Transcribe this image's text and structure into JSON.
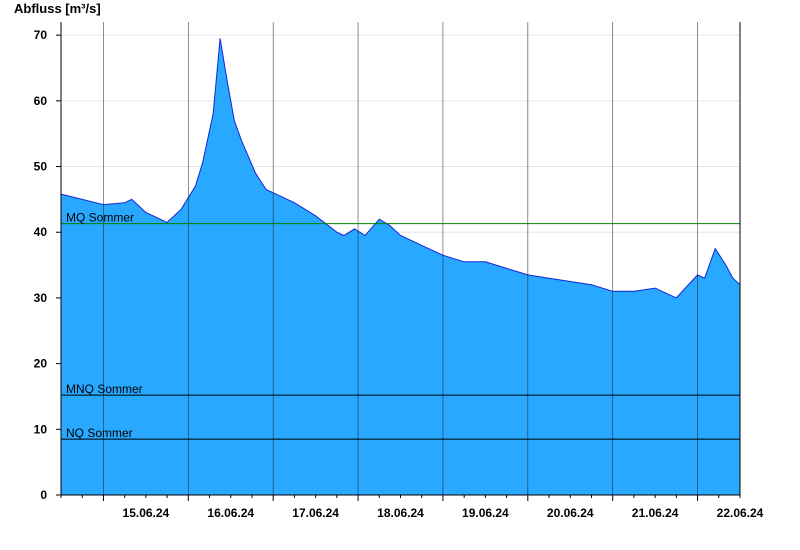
{
  "chart_data": {
    "type": "area",
    "ylabel": "Abfluss [m³/s]",
    "ylim": [
      0,
      72
    ],
    "y_ticks": [
      0,
      10,
      20,
      30,
      40,
      50,
      60,
      70
    ],
    "x_range": [
      "14.06.24 12:00",
      "22.06.24 12:00"
    ],
    "x_ticks": [
      "15.06.24",
      "16.06.24",
      "17.06.24",
      "18.06.24",
      "19.06.24",
      "20.06.24",
      "21.06.24",
      "22.06.24"
    ],
    "grid": true,
    "fill_color": "#29a8ff",
    "line_color": "#1428d2",
    "series": [
      {
        "x": [
          "14.06.24 12:00",
          "14.06.24 18:00",
          "15.06.24 00:00",
          "15.06.24 06:00",
          "15.06.24 08:00",
          "15.06.24 12:00",
          "15.06.24 18:00",
          "15.06.24 22:00",
          "16.06.24 02:00",
          "16.06.24 04:00",
          "16.06.24 07:00",
          "16.06.24 09:00",
          "16.06.24 11:00",
          "16.06.24 13:00",
          "16.06.24 15:00",
          "16.06.24 19:00",
          "16.06.24 22:00",
          "17.06.24 00:00",
          "17.06.24 06:00",
          "17.06.24 12:00",
          "17.06.24 18:00",
          "17.06.24 20:00",
          "17.06.24 23:00",
          "18.06.24 02:00",
          "18.06.24 06:00",
          "18.06.24 09:00",
          "18.06.24 12:00",
          "18.06.24 18:00",
          "19.06.24 00:00",
          "19.06.24 06:00",
          "19.06.24 12:00",
          "19.06.24 18:00",
          "20.06.24 00:00",
          "20.06.24 06:00",
          "20.06.24 12:00",
          "20.06.24 18:00",
          "21.06.24 00:00",
          "21.06.24 06:00",
          "21.06.24 12:00",
          "21.06.24 18:00",
          "22.06.24 00:00",
          "22.06.24 02:00",
          "22.06.24 05:00",
          "22.06.24 08:00",
          "22.06.24 10:00",
          "22.06.24 12:00"
        ],
        "y": [
          45.8,
          45.0,
          44.2,
          44.5,
          45.0,
          43.0,
          41.5,
          43.5,
          47.0,
          50.5,
          58.0,
          69.5,
          63.0,
          57.0,
          54.0,
          49.0,
          46.5,
          46.0,
          44.5,
          42.5,
          40.0,
          39.5,
          40.5,
          39.5,
          42.0,
          41.0,
          39.5,
          38.0,
          36.5,
          35.5,
          35.5,
          34.5,
          33.5,
          33.0,
          32.5,
          32.0,
          31.0,
          31.0,
          31.5,
          30.0,
          33.5,
          33.0,
          37.5,
          35.0,
          33.0,
          32.0
        ]
      }
    ],
    "reference_lines": [
      {
        "name": "MQ Sommer",
        "value": 41.3,
        "color": "#008000"
      },
      {
        "name": "MNQ Sommer",
        "value": 15.2,
        "color": "#000000"
      },
      {
        "name": "NQ Sommer",
        "value": 8.5,
        "color": "#000000"
      }
    ]
  }
}
